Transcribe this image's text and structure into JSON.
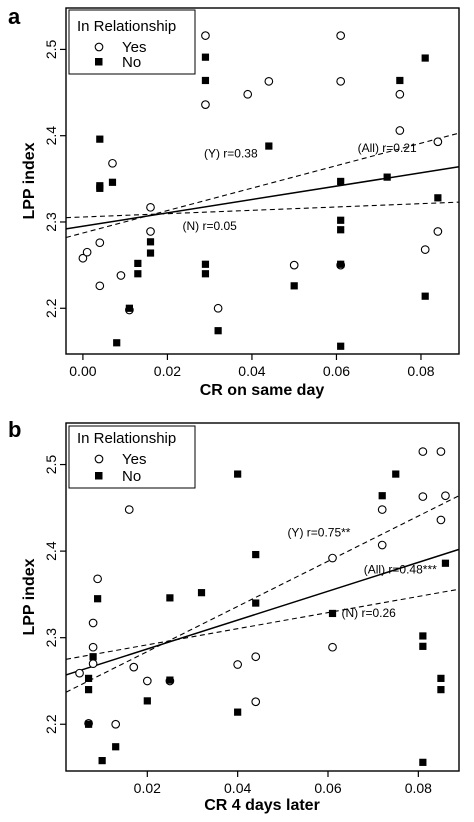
{
  "chart_data": [
    {
      "type": "scatter",
      "panel_label": "a",
      "xlabel": "CR on same day",
      "ylabel": "LPP index",
      "xlim": [
        -0.004,
        0.089
      ],
      "ylim": [
        2.147,
        2.548
      ],
      "xticks": [
        0.0,
        0.02,
        0.04,
        0.06,
        0.08
      ],
      "xtick_labels": [
        "0.00",
        "0.02",
        "0.04",
        "0.06",
        "0.08"
      ],
      "yticks": [
        2.2,
        2.3,
        2.4,
        2.5
      ],
      "ytick_labels": [
        "2.2",
        "2.3",
        "2.4",
        "2.5"
      ],
      "legend": {
        "title": "In Relationship",
        "position": "top-left",
        "entries": [
          {
            "label": "Yes",
            "marker": "open-circle"
          },
          {
            "label": "No",
            "marker": "filled-square"
          }
        ]
      },
      "series": [
        {
          "name": "Yes",
          "marker": "open-circle",
          "points": [
            [
              0.0,
              2.258
            ],
            [
              0.001,
              2.265
            ],
            [
              0.004,
              2.226
            ],
            [
              0.004,
              2.276
            ],
            [
              0.007,
              2.368
            ],
            [
              0.009,
              2.238
            ],
            [
              0.011,
              2.198
            ],
            [
              0.016,
              2.289
            ],
            [
              0.016,
              2.317
            ],
            [
              0.029,
              2.516
            ],
            [
              0.029,
              2.436
            ],
            [
              0.032,
              2.2
            ],
            [
              0.039,
              2.448
            ],
            [
              0.044,
              2.463
            ],
            [
              0.05,
              2.25
            ],
            [
              0.061,
              2.516
            ],
            [
              0.061,
              2.463
            ],
            [
              0.061,
              2.25
            ],
            [
              0.075,
              2.448
            ],
            [
              0.075,
              2.406
            ],
            [
              0.081,
              2.268
            ],
            [
              0.084,
              2.393
            ],
            [
              0.084,
              2.289
            ]
          ]
        },
        {
          "name": "No",
          "marker": "filled-square",
          "points": [
            [
              0.004,
              2.396
            ],
            [
              0.004,
              2.342
            ],
            [
              0.004,
              2.339
            ],
            [
              0.007,
              2.346
            ],
            [
              0.008,
              2.16
            ],
            [
              0.011,
              2.2
            ],
            [
              0.013,
              2.491
            ],
            [
              0.013,
              2.252
            ],
            [
              0.013,
              2.24
            ],
            [
              0.016,
              2.491
            ],
            [
              0.016,
              2.277
            ],
            [
              0.016,
              2.264
            ],
            [
              0.029,
              2.491
            ],
            [
              0.029,
              2.464
            ],
            [
              0.029,
              2.251
            ],
            [
              0.029,
              2.24
            ],
            [
              0.032,
              2.174
            ],
            [
              0.044,
              2.388
            ],
            [
              0.05,
              2.226
            ],
            [
              0.061,
              2.347
            ],
            [
              0.061,
              2.302
            ],
            [
              0.061,
              2.291
            ],
            [
              0.061,
              2.251
            ],
            [
              0.061,
              2.156
            ],
            [
              0.072,
              2.352
            ],
            [
              0.075,
              2.464
            ],
            [
              0.081,
              2.49
            ],
            [
              0.081,
              2.214
            ],
            [
              0.084,
              2.328
            ]
          ]
        }
      ],
      "fits": [
        {
          "label": "(All) r=0.21",
          "style": "solid",
          "x": [
            -0.004,
            0.089
          ],
          "y": [
            2.292,
            2.364
          ]
        },
        {
          "label": "(Y) r=0.38",
          "style": "dashed",
          "x": [
            -0.004,
            0.089
          ],
          "y": [
            2.282,
            2.403
          ]
        },
        {
          "label": "(N) r=0.05",
          "style": "dashed",
          "x": [
            -0.004,
            0.089
          ],
          "y": [
            2.305,
            2.323
          ]
        }
      ],
      "annotations": [
        {
          "text": "(Y) r=0.38",
          "x": 0.035,
          "y": 2.375
        },
        {
          "text": "(All) r=0.21",
          "x": 0.072,
          "y": 2.381
        },
        {
          "text": "(N) r=0.05",
          "x": 0.03,
          "y": 2.291
        }
      ]
    },
    {
      "type": "scatter",
      "panel_label": "b",
      "xlabel": "CR 4 days later",
      "ylabel": "LPP index",
      "xlim": [
        0.002,
        0.089
      ],
      "ylim": [
        2.146,
        2.548
      ],
      "xticks": [
        0.02,
        0.04,
        0.06,
        0.08
      ],
      "xtick_labels": [
        "0.02",
        "0.04",
        "0.06",
        "0.08"
      ],
      "yticks": [
        2.2,
        2.3,
        2.4,
        2.5
      ],
      "ytick_labels": [
        "2.2",
        "2.3",
        "2.4",
        "2.5"
      ],
      "legend": {
        "title": "In Relationship",
        "position": "top-left",
        "entries": [
          {
            "label": "Yes",
            "marker": "open-circle"
          },
          {
            "label": "No",
            "marker": "filled-square"
          }
        ]
      },
      "series": [
        {
          "name": "Yes",
          "marker": "open-circle",
          "points": [
            [
              0.005,
              2.259
            ],
            [
              0.007,
              2.201
            ],
            [
              0.008,
              2.317
            ],
            [
              0.008,
              2.289
            ],
            [
              0.008,
              2.27
            ],
            [
              0.009,
              2.368
            ],
            [
              0.013,
              2.2
            ],
            [
              0.016,
              2.448
            ],
            [
              0.017,
              2.266
            ],
            [
              0.02,
              2.25
            ],
            [
              0.025,
              2.25
            ],
            [
              0.04,
              2.269
            ],
            [
              0.044,
              2.278
            ],
            [
              0.044,
              2.226
            ],
            [
              0.061,
              2.392
            ],
            [
              0.061,
              2.289
            ],
            [
              0.072,
              2.448
            ],
            [
              0.072,
              2.407
            ],
            [
              0.081,
              2.515
            ],
            [
              0.081,
              2.463
            ],
            [
              0.085,
              2.515
            ],
            [
              0.085,
              2.436
            ],
            [
              0.086,
              2.464
            ]
          ]
        },
        {
          "name": "No",
          "marker": "filled-square",
          "points": [
            [
              0.007,
              2.489
            ],
            [
              0.007,
              2.253
            ],
            [
              0.007,
              2.24
            ],
            [
              0.007,
              2.2
            ],
            [
              0.008,
              2.278
            ],
            [
              0.009,
              2.345
            ],
            [
              0.01,
              2.158
            ],
            [
              0.013,
              2.174
            ],
            [
              0.02,
              2.227
            ],
            [
              0.025,
              2.346
            ],
            [
              0.025,
              2.251
            ],
            [
              0.032,
              2.352
            ],
            [
              0.04,
              2.489
            ],
            [
              0.04,
              2.214
            ],
            [
              0.044,
              2.396
            ],
            [
              0.044,
              2.34
            ],
            [
              0.061,
              2.328
            ],
            [
              0.072,
              2.464
            ],
            [
              0.075,
              2.489
            ],
            [
              0.081,
              2.302
            ],
            [
              0.081,
              2.29
            ],
            [
              0.081,
              2.156
            ],
            [
              0.085,
              2.253
            ],
            [
              0.085,
              2.24
            ],
            [
              0.086,
              2.386
            ]
          ]
        }
      ],
      "fits": [
        {
          "label": "(All) r=0.48***",
          "style": "solid",
          "x": [
            0.002,
            0.089
          ],
          "y": [
            2.257,
            2.402
          ]
        },
        {
          "label": "(Y) r=0.75**",
          "style": "dashed",
          "x": [
            0.002,
            0.089
          ],
          "y": [
            2.237,
            2.464
          ]
        },
        {
          "label": "(N) r=0.26",
          "style": "dashed",
          "x": [
            0.002,
            0.089
          ],
          "y": [
            2.275,
            2.356
          ]
        }
      ],
      "annotations": [
        {
          "text": "(Y) r=0.75**",
          "x": 0.058,
          "y": 2.417
        },
        {
          "text": "(All) r=0.48***",
          "x": 0.076,
          "y": 2.374
        },
        {
          "text": "(N) r=0.26",
          "x": 0.069,
          "y": 2.324
        }
      ]
    }
  ]
}
